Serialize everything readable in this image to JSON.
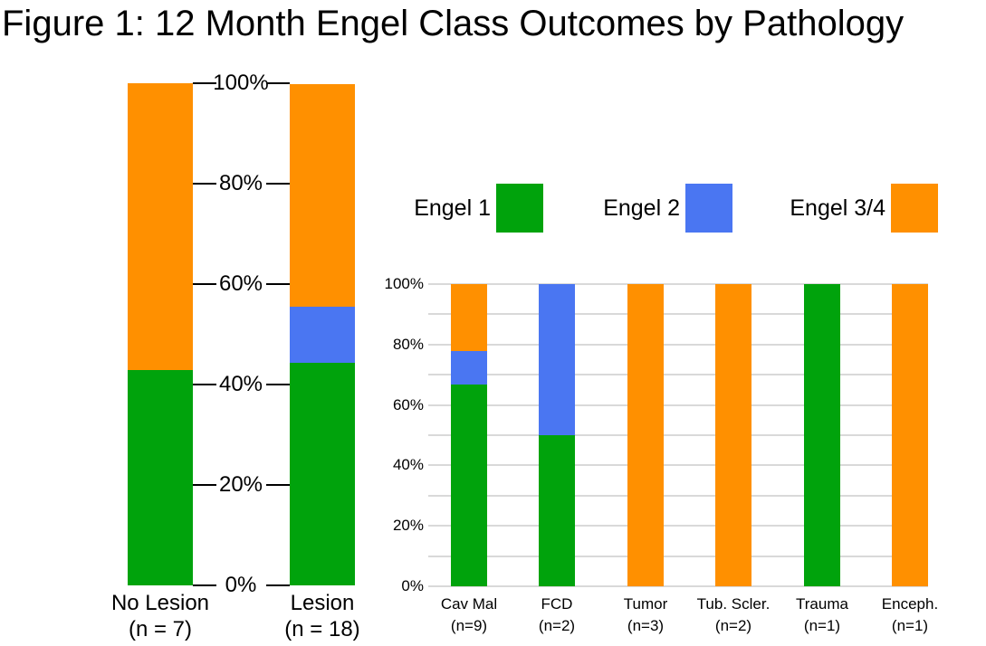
{
  "title": "Figure 1: 12 Month Engel Class Outcomes by Pathology",
  "colors": {
    "engel1": "#00a30c",
    "engel2": "#4a76f2",
    "engel34": "#ff9000",
    "gridline": "#d9d9d9",
    "text": "#000000"
  },
  "legend": {
    "items": [
      {
        "label": "Engel 1",
        "color_key": "engel1"
      },
      {
        "label": "Engel 2",
        "color_key": "engel2"
      },
      {
        "label": "Engel 3/4",
        "color_key": "engel34"
      }
    ]
  },
  "chart_data": [
    {
      "id": "outcomes-by-lesion-status",
      "type": "bar",
      "subtype": "stacked-100-percent",
      "categories": [
        {
          "label": "No Lesion",
          "sub": "(n = 7)"
        },
        {
          "label": "Lesion",
          "sub": "(n = 18)"
        }
      ],
      "series": [
        {
          "name": "Engel 1",
          "color_key": "engel1",
          "values": [
            42.9,
            44.4
          ]
        },
        {
          "name": "Engel 2",
          "color_key": "engel2",
          "values": [
            0,
            11.1
          ]
        },
        {
          "name": "Engel 3/4",
          "color_key": "engel34",
          "values": [
            57.1,
            44.4
          ]
        }
      ],
      "ylim": [
        0,
        100
      ],
      "yticks": [
        "0%",
        "20%",
        "40%",
        "60%",
        "80%",
        "100%"
      ],
      "grid": false,
      "axis_style": "center-ticks-between-bars"
    },
    {
      "id": "outcomes-by-pathology",
      "type": "bar",
      "subtype": "stacked-100-percent",
      "categories": [
        {
          "label": "Cav Mal",
          "sub": "(n=9)"
        },
        {
          "label": "FCD",
          "sub": "(n=2)"
        },
        {
          "label": "Tumor",
          "sub": "(n=3)"
        },
        {
          "label": "Tub. Scler.",
          "sub": "(n=2)"
        },
        {
          "label": "Trauma",
          "sub": "(n=1)"
        },
        {
          "label": "Enceph.",
          "sub": "(n=1)"
        }
      ],
      "series": [
        {
          "name": "Engel 1",
          "color_key": "engel1",
          "values": [
            66.7,
            50,
            0,
            0,
            100,
            0
          ]
        },
        {
          "name": "Engel 2",
          "color_key": "engel2",
          "values": [
            11.1,
            50,
            0,
            0,
            0,
            0
          ]
        },
        {
          "name": "Engel 3/4",
          "color_key": "engel34",
          "values": [
            22.2,
            0,
            100,
            100,
            0,
            100
          ]
        }
      ],
      "ylim": [
        0,
        100
      ],
      "yticks": [
        "0%",
        "20%",
        "40%",
        "60%",
        "80%",
        "100%"
      ],
      "grid": true,
      "grid_interval": 10,
      "legend_position": "top"
    }
  ]
}
